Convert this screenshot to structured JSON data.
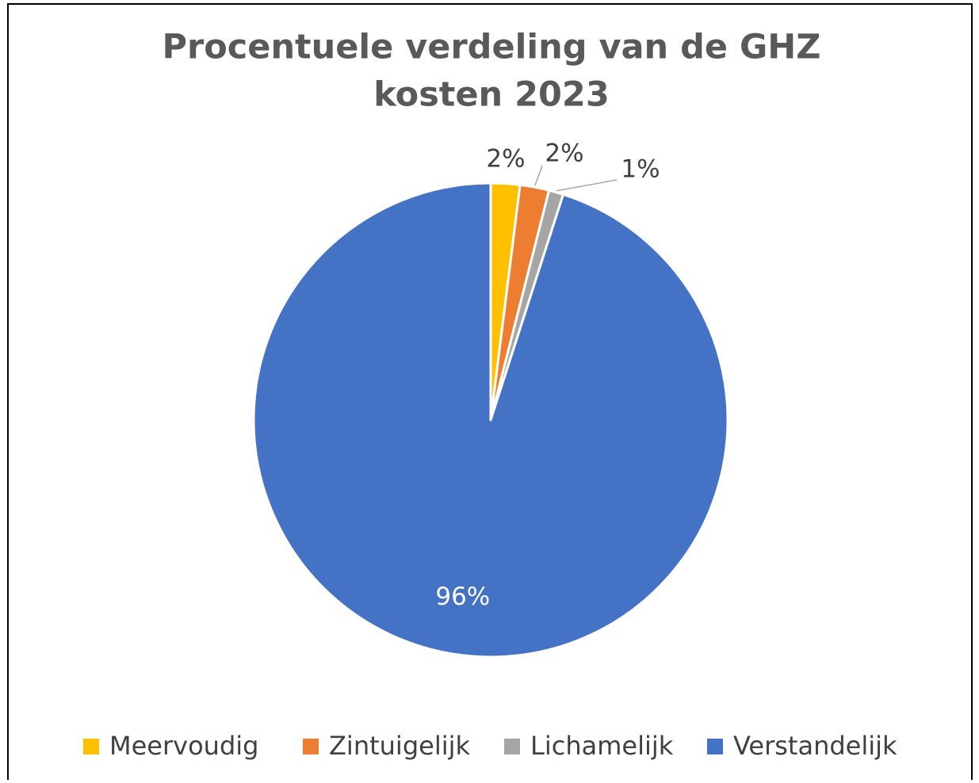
{
  "chart_data": {
    "type": "pie",
    "title": [
      "Procentuele verdeling van de GHZ",
      "kosten 2023"
    ],
    "categories": [
      "Meervoudig",
      "Zintuigelijk",
      "Lichamelijk",
      "Verstandelijk"
    ],
    "values": [
      2,
      2,
      1,
      96
    ],
    "value_labels": [
      "2%",
      "2%",
      "1%",
      "96%"
    ],
    "colors": [
      "#FFC000",
      "#ED7D31",
      "#A5A5A5",
      "#4472C4"
    ],
    "legend": "bottom"
  }
}
